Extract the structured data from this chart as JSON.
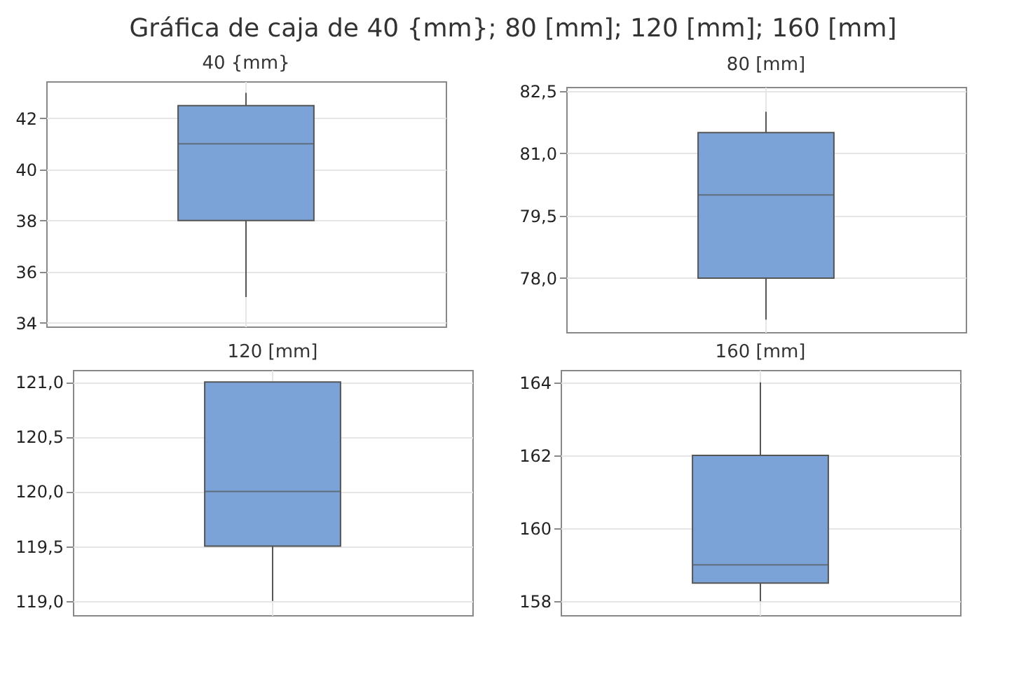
{
  "chart_data": [
    {
      "type": "box",
      "title": "Gráfica de caja de 40 {mm}; 80 [mm]; 120 [mm]; 160 [mm]",
      "subtitle": "40 {mm}",
      "categories": [
        null
      ],
      "series": [
        {
          "color": "#7ba3d8",
          "boxes": [
            {
              "low": 35,
              "q1": 38,
              "median": 41,
              "q3": 42.5,
              "high": 43
            }
          ]
        }
      ],
      "ylim": [
        33.85,
        43.45
      ],
      "yticks": [
        34,
        36,
        38,
        40,
        42
      ],
      "grid": true,
      "tick_labels": "y"
    },
    {
      "type": "box",
      "subtitle": "80 [mm]",
      "categories": [
        null
      ],
      "series": [
        {
          "color": "#7ba3d8",
          "boxes": [
            {
              "low": 77,
              "q1": 78,
              "median": 80,
              "q3": 81.5,
              "high": 82
            }
          ]
        }
      ],
      "ylim": [
        76.7,
        82.6
      ],
      "yticks": [
        {
          "value": 78,
          "label": "78,0"
        },
        {
          "value": 79.5,
          "label": "79,5"
        },
        {
          "value": 81,
          "label": "81,0"
        },
        {
          "value": 82.5,
          "label": "82,5"
        }
      ],
      "grid": true,
      "tick_labels": "y"
    },
    {
      "type": "box",
      "subtitle": "120 [mm]",
      "categories": [
        null
      ],
      "series": [
        {
          "color": "#7ba3d8",
          "boxes": [
            {
              "low": 119,
              "q1": 119.5,
              "median": 120,
              "q3": 121,
              "high": 121
            }
          ]
        }
      ],
      "ylim": [
        118.87,
        121.11
      ],
      "yticks": [
        {
          "value": 119,
          "label": "119,0"
        },
        {
          "value": 119.5,
          "label": "119,5"
        },
        {
          "value": 120,
          "label": "120,0"
        },
        {
          "value": 120.5,
          "label": "120,5"
        },
        {
          "value": 121,
          "label": "121,0"
        }
      ],
      "grid": true,
      "tick_labels": "y"
    },
    {
      "type": "box",
      "subtitle": "160 [mm]",
      "categories": [
        null
      ],
      "series": [
        {
          "color": "#7ba3d8",
          "boxes": [
            {
              "low": 158,
              "q1": 158.5,
              "median": 159,
              "q3": 162,
              "high": 164
            }
          ]
        }
      ],
      "ylim": [
        157.62,
        164.34
      ],
      "yticks": [
        158,
        160,
        162,
        164
      ],
      "grid": true,
      "tick_labels": "y"
    }
  ]
}
